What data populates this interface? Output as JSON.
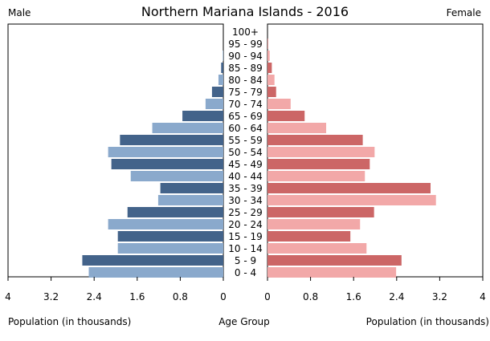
{
  "chart_data": {
    "type": "bar",
    "orientation": "horizontal",
    "title": "Northern Mariana Islands - 2016",
    "left_label": "Male",
    "right_label": "Female",
    "left_xlabel": "Population (in thousands)",
    "center_label": "Age Group",
    "right_xlabel": "Population (in thousands)",
    "xlim": [
      0,
      4
    ],
    "ticks": [
      0,
      0.8,
      1.6,
      2.4,
      3.2,
      4
    ],
    "tick_labels": [
      "0",
      "0.8",
      "1.6",
      "2.4",
      "3.2",
      "4"
    ],
    "categories": [
      "100+",
      "95 - 99",
      "90 - 94",
      "85 - 89",
      "80 - 84",
      "75 - 79",
      "70 - 74",
      "65 - 69",
      "60 - 64",
      "55 - 59",
      "50 - 54",
      "45 - 49",
      "40 - 44",
      "35 - 39",
      "30 - 34",
      "25 - 29",
      "20 - 24",
      "15 - 19",
      "10 - 14",
      "5 - 9",
      "0 - 4"
    ],
    "series": [
      {
        "name": "Male",
        "values": [
          0,
          0,
          0.01,
          0.04,
          0.09,
          0.21,
          0.33,
          0.76,
          1.32,
          1.92,
          2.14,
          2.08,
          1.72,
          1.17,
          1.21,
          1.78,
          2.14,
          1.96,
          1.96,
          2.62,
          2.5
        ],
        "colors": [
          "#8aa9cc",
          "#43638a"
        ]
      },
      {
        "name": "Female",
        "values": [
          0,
          0.01,
          0.04,
          0.08,
          0.13,
          0.16,
          0.43,
          0.69,
          1.09,
          1.77,
          1.99,
          1.9,
          1.81,
          3.03,
          3.13,
          1.98,
          1.72,
          1.54,
          1.84,
          2.49,
          2.39
        ],
        "colors": [
          "#f2a8a8",
          "#cc6666"
        ]
      }
    ]
  }
}
